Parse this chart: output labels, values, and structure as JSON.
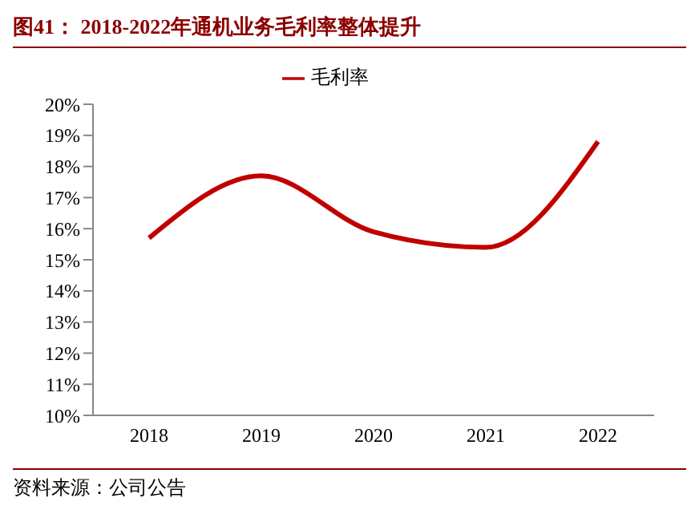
{
  "chart_data": {
    "type": "line",
    "title": "图41： 2018-2022年通机业务毛利率整体提升",
    "categories": [
      "2018",
      "2019",
      "2020",
      "2021",
      "2022"
    ],
    "series": [
      {
        "name": "毛利率",
        "color": "#c00000",
        "values": [
          15.7,
          17.7,
          15.9,
          15.4,
          18.8
        ]
      }
    ],
    "ylim": [
      10,
      20
    ],
    "yticks": [
      {
        "value": 10,
        "label": "10%"
      },
      {
        "value": 11,
        "label": "11%"
      },
      {
        "value": 12,
        "label": "12%"
      },
      {
        "value": 13,
        "label": "13%"
      },
      {
        "value": 14,
        "label": "14%"
      },
      {
        "value": 15,
        "label": "15%"
      },
      {
        "value": 16,
        "label": "16%"
      },
      {
        "value": 17,
        "label": "17%"
      },
      {
        "value": 18,
        "label": "18%"
      },
      {
        "value": 19,
        "label": "19%"
      },
      {
        "value": 20,
        "label": "20%"
      }
    ],
    "legend": "top",
    "marker": "none",
    "line_style": "solid",
    "grid": false,
    "annotations": [
      "资料来源：公司公告"
    ]
  }
}
